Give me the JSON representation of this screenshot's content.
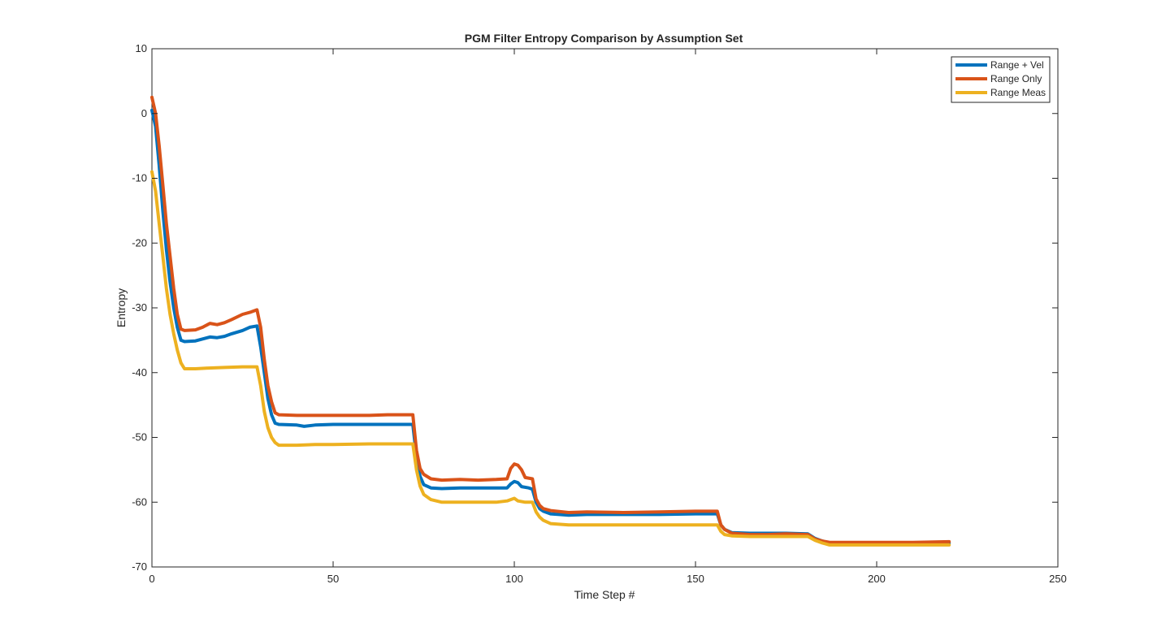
{
  "chart_data": {
    "type": "line",
    "title": "PGM Filter Entropy Comparison by Assumption Set",
    "xlabel": "Time Step #",
    "ylabel": "Entropy",
    "xlim": [
      0,
      250
    ],
    "ylim": [
      -70,
      10
    ],
    "xticks": [
      0,
      50,
      100,
      150,
      200,
      250
    ],
    "yticks": [
      10,
      0,
      -10,
      -20,
      -30,
      -40,
      -50,
      -60,
      -70
    ],
    "legend_position": "top-right",
    "grid": false,
    "series": [
      {
        "name": "Range + Vel",
        "color": "#0072BD",
        "points": [
          [
            0,
            0.5
          ],
          [
            1,
            -2
          ],
          [
            2,
            -8
          ],
          [
            3,
            -15
          ],
          [
            4,
            -21
          ],
          [
            5,
            -26
          ],
          [
            6,
            -30
          ],
          [
            7,
            -33
          ],
          [
            8,
            -35
          ],
          [
            9,
            -35.2
          ],
          [
            12,
            -35.1
          ],
          [
            14,
            -34.8
          ],
          [
            16,
            -34.5
          ],
          [
            18,
            -34.6
          ],
          [
            20,
            -34.4
          ],
          [
            22,
            -34
          ],
          [
            25,
            -33.5
          ],
          [
            27,
            -33
          ],
          [
            29,
            -32.8
          ],
          [
            30,
            -36
          ],
          [
            31,
            -40
          ],
          [
            32,
            -44
          ],
          [
            33,
            -46.5
          ],
          [
            34,
            -47.8
          ],
          [
            35,
            -48
          ],
          [
            40,
            -48.1
          ],
          [
            42,
            -48.3
          ],
          [
            45,
            -48.1
          ],
          [
            50,
            -48
          ],
          [
            60,
            -48
          ],
          [
            72,
            -48
          ],
          [
            73,
            -53
          ],
          [
            74,
            -56
          ],
          [
            75,
            -57.3
          ],
          [
            77,
            -57.8
          ],
          [
            80,
            -57.9
          ],
          [
            85,
            -57.8
          ],
          [
            90,
            -57.8
          ],
          [
            95,
            -57.8
          ],
          [
            98,
            -57.8
          ],
          [
            99,
            -57.2
          ],
          [
            100,
            -56.8
          ],
          [
            101,
            -57
          ],
          [
            102,
            -57.6
          ],
          [
            104,
            -57.8
          ],
          [
            105,
            -58
          ],
          [
            106,
            -60
          ],
          [
            107,
            -61
          ],
          [
            108,
            -61.4
          ],
          [
            110,
            -61.8
          ],
          [
            115,
            -62
          ],
          [
            120,
            -61.9
          ],
          [
            130,
            -61.9
          ],
          [
            140,
            -61.9
          ],
          [
            150,
            -61.8
          ],
          [
            156,
            -61.8
          ],
          [
            157,
            -63.5
          ],
          [
            158,
            -64.2
          ],
          [
            160,
            -64.7
          ],
          [
            165,
            -64.8
          ],
          [
            170,
            -64.8
          ],
          [
            175,
            -64.8
          ],
          [
            181,
            -64.9
          ],
          [
            183,
            -65.6
          ],
          [
            185,
            -66
          ],
          [
            187,
            -66.3
          ],
          [
            190,
            -66.3
          ],
          [
            200,
            -66.3
          ],
          [
            210,
            -66.3
          ],
          [
            220,
            -66.3
          ]
        ]
      },
      {
        "name": "Range Only",
        "color": "#D95319",
        "points": [
          [
            0,
            2.5
          ],
          [
            1,
            0
          ],
          [
            2,
            -5
          ],
          [
            3,
            -11
          ],
          [
            4,
            -17
          ],
          [
            5,
            -22
          ],
          [
            6,
            -27
          ],
          [
            7,
            -31
          ],
          [
            8,
            -33.3
          ],
          [
            9,
            -33.5
          ],
          [
            12,
            -33.4
          ],
          [
            14,
            -33
          ],
          [
            16,
            -32.4
          ],
          [
            18,
            -32.6
          ],
          [
            20,
            -32.3
          ],
          [
            22,
            -31.8
          ],
          [
            25,
            -31
          ],
          [
            27,
            -30.7
          ],
          [
            29,
            -30.3
          ],
          [
            30,
            -33
          ],
          [
            31,
            -38
          ],
          [
            32,
            -42
          ],
          [
            33,
            -44.5
          ],
          [
            34,
            -46.2
          ],
          [
            35,
            -46.5
          ],
          [
            40,
            -46.6
          ],
          [
            45,
            -46.6
          ],
          [
            50,
            -46.6
          ],
          [
            60,
            -46.6
          ],
          [
            65,
            -46.5
          ],
          [
            72,
            -46.5
          ],
          [
            73,
            -52
          ],
          [
            74,
            -54.8
          ],
          [
            75,
            -55.7
          ],
          [
            77,
            -56.4
          ],
          [
            80,
            -56.6
          ],
          [
            85,
            -56.5
          ],
          [
            90,
            -56.6
          ],
          [
            95,
            -56.5
          ],
          [
            98,
            -56.4
          ],
          [
            99,
            -54.8
          ],
          [
            100,
            -54.1
          ],
          [
            101,
            -54.3
          ],
          [
            102,
            -55
          ],
          [
            103,
            -56.2
          ],
          [
            105,
            -56.4
          ],
          [
            106,
            -59.5
          ],
          [
            107,
            -60.5
          ],
          [
            108,
            -61
          ],
          [
            110,
            -61.3
          ],
          [
            115,
            -61.6
          ],
          [
            120,
            -61.5
          ],
          [
            130,
            -61.6
          ],
          [
            140,
            -61.5
          ],
          [
            150,
            -61.4
          ],
          [
            156,
            -61.4
          ],
          [
            157,
            -63.5
          ],
          [
            158,
            -64.2
          ],
          [
            160,
            -64.8
          ],
          [
            165,
            -65
          ],
          [
            170,
            -65
          ],
          [
            175,
            -64.9
          ],
          [
            181,
            -65
          ],
          [
            183,
            -65.7
          ],
          [
            185,
            -66
          ],
          [
            187,
            -66.2
          ],
          [
            190,
            -66.2
          ],
          [
            200,
            -66.2
          ],
          [
            210,
            -66.2
          ],
          [
            220,
            -66.1
          ]
        ]
      },
      {
        "name": "Range Meas",
        "color": "#EDB120",
        "points": [
          [
            0,
            -9
          ],
          [
            1,
            -12
          ],
          [
            2,
            -17
          ],
          [
            3,
            -22
          ],
          [
            4,
            -27
          ],
          [
            5,
            -31
          ],
          [
            6,
            -34
          ],
          [
            7,
            -36.5
          ],
          [
            8,
            -38.5
          ],
          [
            9,
            -39.4
          ],
          [
            12,
            -39.4
          ],
          [
            15,
            -39.3
          ],
          [
            20,
            -39.2
          ],
          [
            25,
            -39.1
          ],
          [
            29,
            -39.1
          ],
          [
            30,
            -42
          ],
          [
            31,
            -46
          ],
          [
            32,
            -48.5
          ],
          [
            33,
            -50
          ],
          [
            34,
            -50.8
          ],
          [
            35,
            -51.2
          ],
          [
            40,
            -51.2
          ],
          [
            45,
            -51.1
          ],
          [
            50,
            -51.1
          ],
          [
            60,
            -51
          ],
          [
            72,
            -51
          ],
          [
            73,
            -55
          ],
          [
            74,
            -57.5
          ],
          [
            75,
            -58.8
          ],
          [
            77,
            -59.6
          ],
          [
            80,
            -60
          ],
          [
            85,
            -60
          ],
          [
            90,
            -60
          ],
          [
            95,
            -60
          ],
          [
            98,
            -59.8
          ],
          [
            99,
            -59.6
          ],
          [
            100,
            -59.4
          ],
          [
            101,
            -59.8
          ],
          [
            103,
            -60
          ],
          [
            105,
            -60
          ],
          [
            106,
            -61.5
          ],
          [
            107,
            -62.3
          ],
          [
            108,
            -62.8
          ],
          [
            110,
            -63.3
          ],
          [
            115,
            -63.5
          ],
          [
            120,
            -63.5
          ],
          [
            130,
            -63.5
          ],
          [
            140,
            -63.5
          ],
          [
            150,
            -63.5
          ],
          [
            156,
            -63.5
          ],
          [
            157,
            -64.5
          ],
          [
            158,
            -65
          ],
          [
            160,
            -65.2
          ],
          [
            165,
            -65.3
          ],
          [
            170,
            -65.3
          ],
          [
            175,
            -65.3
          ],
          [
            181,
            -65.3
          ],
          [
            183,
            -65.9
          ],
          [
            185,
            -66.3
          ],
          [
            187,
            -66.6
          ],
          [
            190,
            -66.6
          ],
          [
            200,
            -66.6
          ],
          [
            210,
            -66.6
          ],
          [
            220,
            -66.6
          ]
        ]
      }
    ]
  }
}
